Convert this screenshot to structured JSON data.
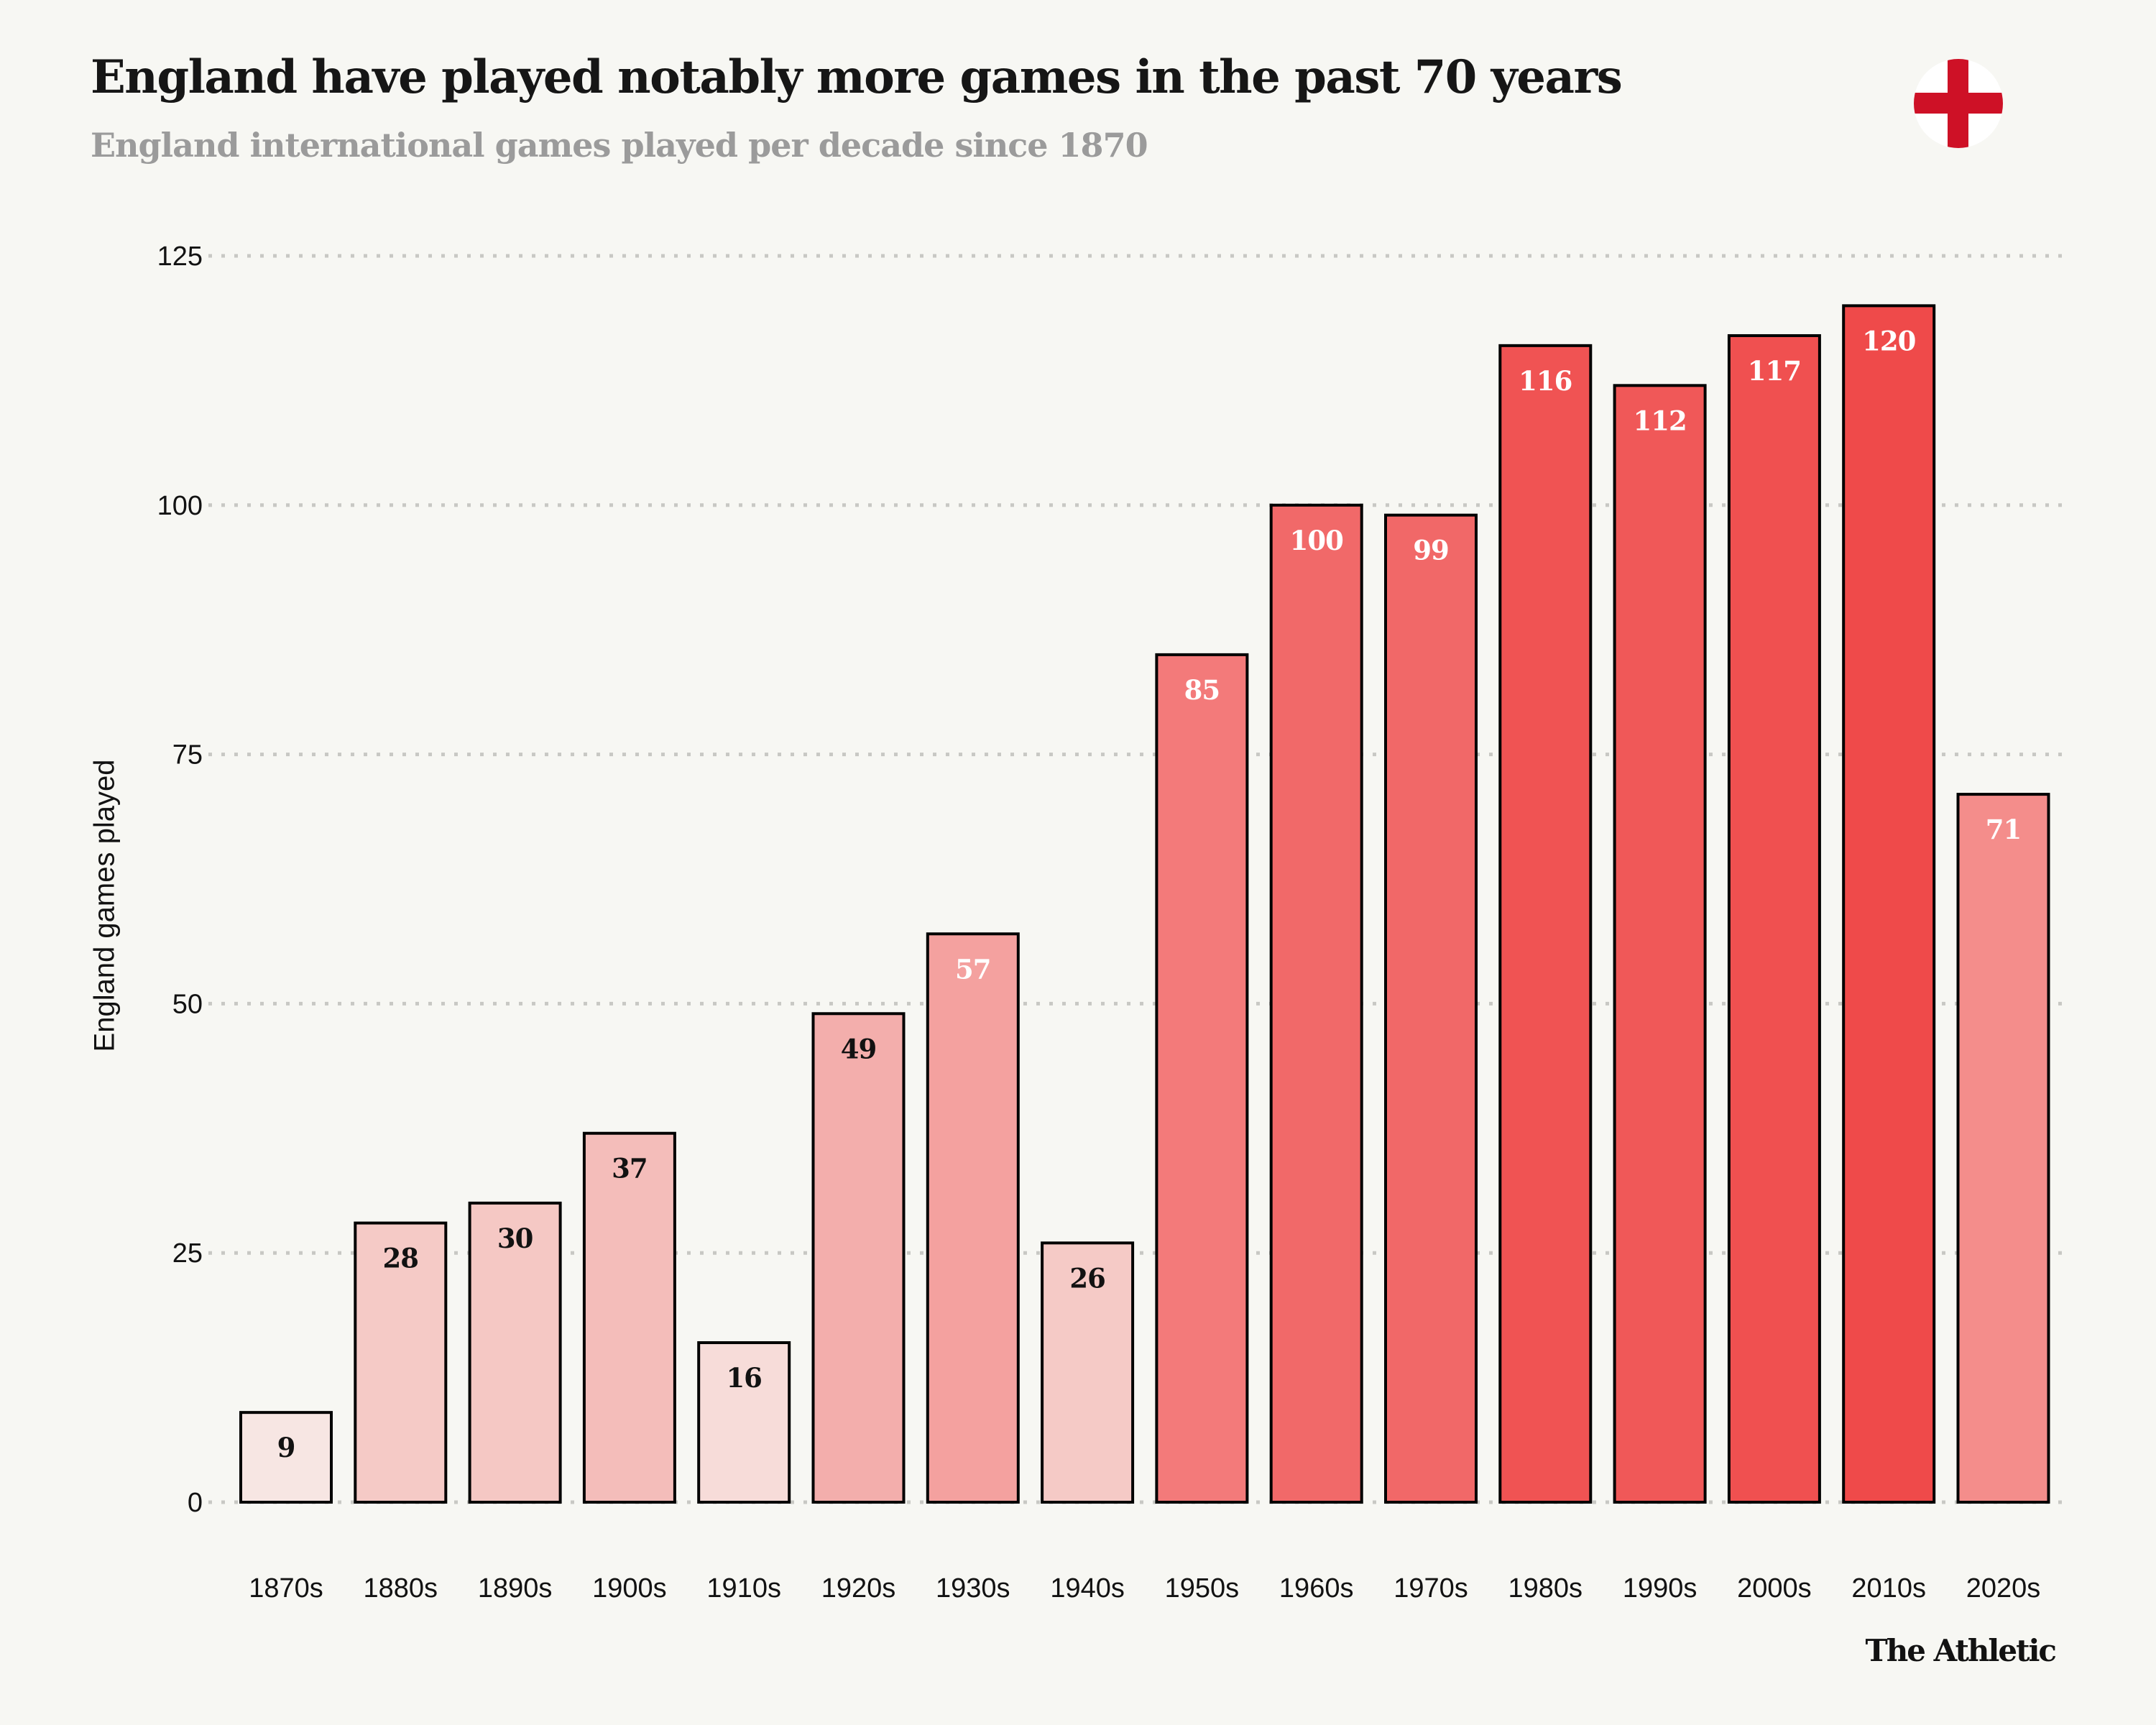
{
  "header": {
    "title": "England have played notably more games in the past 70 years",
    "subtitle": "England international games played per decade since 1870",
    "flag_icon": "england-flag-icon"
  },
  "footer": {
    "source": "The Athletic"
  },
  "colors": {
    "background": "#f7f7f3",
    "bar_stroke": "#000000",
    "gridline": "#c8c8c4",
    "flag_red": "#ce1126",
    "label_dark": "#121212",
    "label_light": "#ffffff"
  },
  "chart_data": {
    "type": "bar",
    "title": "England have played notably more games in the past 70 years",
    "subtitle": "England international games played per decade since 1870",
    "xlabel": "",
    "ylabel": "England games played",
    "ylim": [
      0,
      125
    ],
    "yticks": [
      0,
      25,
      50,
      75,
      100,
      125
    ],
    "grid": "horizontal dotted",
    "legend": "none",
    "categories": [
      "1870s",
      "1880s",
      "1890s",
      "1900s",
      "1910s",
      "1920s",
      "1930s",
      "1940s",
      "1950s",
      "1960s",
      "1970s",
      "1980s",
      "1990s",
      "2000s",
      "2010s",
      "2020s"
    ],
    "values": [
      9,
      28,
      30,
      37,
      16,
      49,
      57,
      26,
      85,
      100,
      99,
      116,
      112,
      117,
      120,
      71
    ],
    "bar_colors": [
      "#f7e6e3",
      "#f5cac6",
      "#f5c8c4",
      "#f4bdba",
      "#f7dcd9",
      "#f3aeac",
      "#f4a19f",
      "#f5cac6",
      "#f37a7a",
      "#f16969",
      "#f16868",
      "#f05353",
      "#f05858",
      "#f05050",
      "#ef4a4a",
      "#f48d8b"
    ],
    "label_colors": [
      "#121212",
      "#121212",
      "#121212",
      "#121212",
      "#121212",
      "#121212",
      "#ffffff",
      "#121212",
      "#ffffff",
      "#ffffff",
      "#ffffff",
      "#ffffff",
      "#ffffff",
      "#ffffff",
      "#ffffff",
      "#ffffff"
    ]
  }
}
